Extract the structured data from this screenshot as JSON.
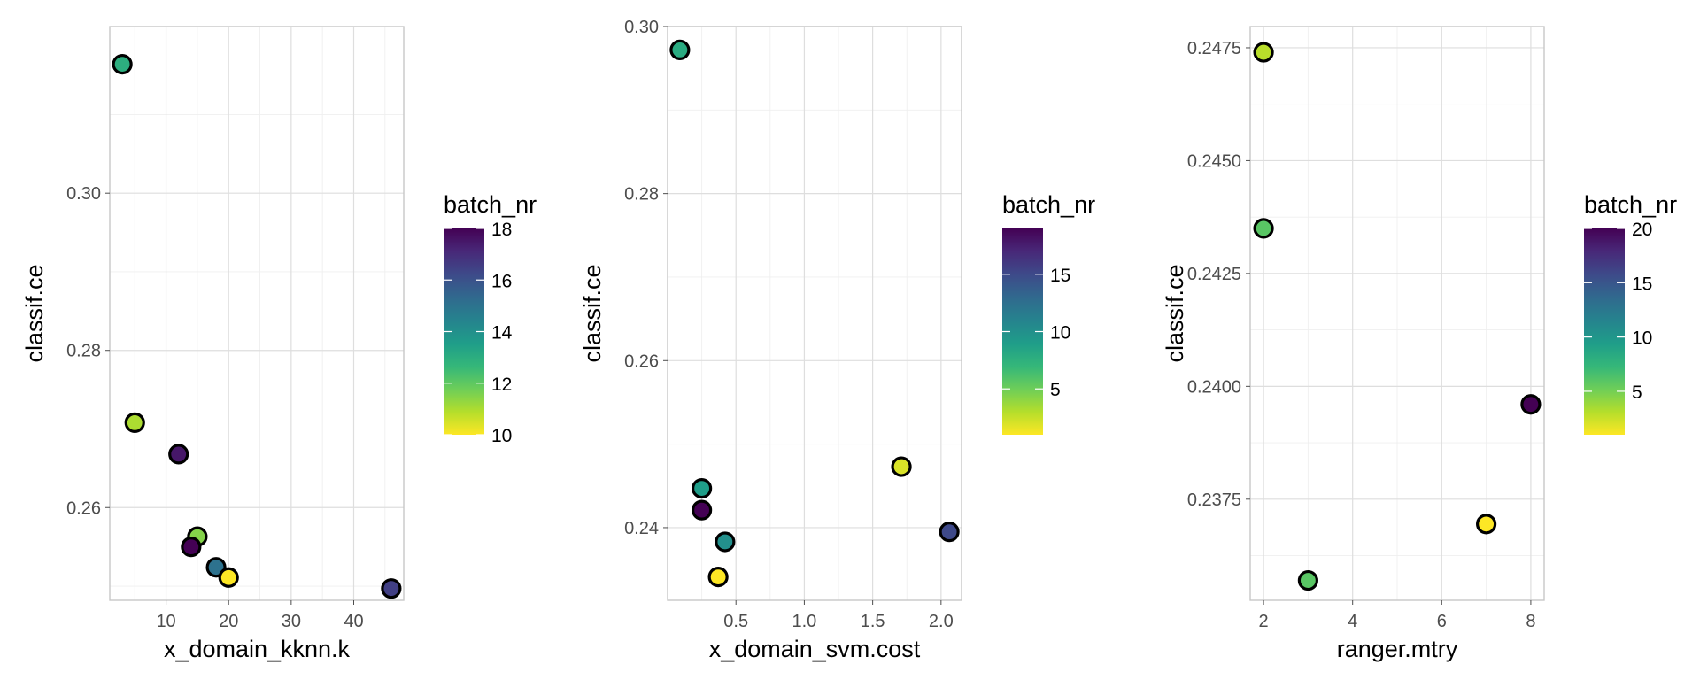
{
  "chart_data": [
    {
      "type": "scatter",
      "xlabel": "x_domain_kknn.k",
      "ylabel": "classif.ce",
      "x_ticks": [
        10,
        20,
        30,
        40
      ],
      "y_ticks": [
        0.26,
        0.28,
        0.3
      ],
      "y_tick_labels": [
        "0.26",
        "0.28",
        "0.30"
      ],
      "xlim": [
        1,
        48
      ],
      "ylim": [
        0.2482,
        0.3212
      ],
      "grid": true,
      "legend": {
        "title": "batch_nr",
        "type": "colorbar",
        "position": "right",
        "min": 10,
        "max": 18,
        "ticks": [
          10,
          12,
          14,
          16,
          18
        ]
      },
      "points": [
        {
          "x": 3,
          "y": 0.3164,
          "batch": 13
        },
        {
          "x": 5,
          "y": 0.2708,
          "batch": 11
        },
        {
          "x": 12,
          "y": 0.2668,
          "batch": 17.5
        },
        {
          "x": 15,
          "y": 0.2563,
          "batch": 11.5
        },
        {
          "x": 14,
          "y": 0.255,
          "batch": 18
        },
        {
          "x": 18,
          "y": 0.2524,
          "batch": 15
        },
        {
          "x": 20,
          "y": 0.2511,
          "batch": 10
        },
        {
          "x": 46,
          "y": 0.2497,
          "batch": 16.5
        }
      ]
    },
    {
      "type": "scatter",
      "xlabel": "x_domain_svm.cost",
      "ylabel": "classif.ce",
      "x_ticks": [
        0.5,
        1.0,
        1.5,
        2.0
      ],
      "x_tick_labels": [
        "0.5",
        "1.0",
        "1.5",
        "2.0"
      ],
      "y_ticks": [
        0.24,
        0.26,
        0.28,
        0.3
      ],
      "y_tick_labels": [
        "0.24",
        "0.26",
        "0.28",
        "0.30"
      ],
      "xlim": [
        0.0,
        2.15
      ],
      "ylim": [
        0.2313,
        0.3
      ],
      "grid": true,
      "legend": {
        "title": "batch_nr",
        "type": "colorbar",
        "position": "right",
        "min": 1,
        "max": 19,
        "ticks": [
          5,
          10,
          15
        ]
      },
      "points": [
        {
          "x": 0.09,
          "y": 0.2972,
          "batch": 8
        },
        {
          "x": 0.25,
          "y": 0.2447,
          "batch": 9
        },
        {
          "x": 0.25,
          "y": 0.2421,
          "batch": 19
        },
        {
          "x": 0.42,
          "y": 0.2383,
          "batch": 10
        },
        {
          "x": 0.37,
          "y": 0.2341,
          "batch": 1
        },
        {
          "x": 1.71,
          "y": 0.2473,
          "batch": 2
        },
        {
          "x": 2.06,
          "y": 0.2395,
          "batch": 15
        }
      ]
    },
    {
      "type": "scatter",
      "xlabel": "ranger.mtry",
      "ylabel": "classif.ce",
      "x_ticks": [
        2,
        4,
        6,
        8
      ],
      "y_ticks": [
        0.2375,
        0.24,
        0.2425,
        0.245,
        0.2475
      ],
      "y_tick_labels": [
        "0.2375",
        "0.2400",
        "0.2425",
        "0.2450",
        "0.2475"
      ],
      "xlim": [
        1.7,
        8.3
      ],
      "ylim": [
        0.23526,
        0.24797
      ],
      "grid": true,
      "legend": {
        "title": "batch_nr",
        "type": "colorbar",
        "position": "right",
        "min": 1,
        "max": 20,
        "ticks": [
          5,
          10,
          15,
          20
        ]
      },
      "points": [
        {
          "x": 2,
          "y": 0.2474,
          "batch": 3
        },
        {
          "x": 2,
          "y": 0.2435,
          "batch": 6
        },
        {
          "x": 3,
          "y": 0.2357,
          "batch": 6
        },
        {
          "x": 7,
          "y": 0.23695,
          "batch": 1
        },
        {
          "x": 8,
          "y": 0.2396,
          "batch": 20
        }
      ]
    }
  ],
  "colors": {
    "viridis": [
      "#440154",
      "#482878",
      "#3e4989",
      "#31688e",
      "#26828e",
      "#1f9e89",
      "#35b779",
      "#6ece58",
      "#b5de2b",
      "#fde725"
    ],
    "point_outline": "#000000"
  }
}
